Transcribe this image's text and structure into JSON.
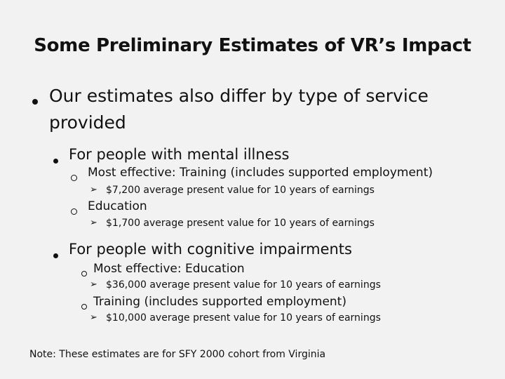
{
  "title": "Some Preliminary Estimates of VR’s Impact",
  "bullet1": {
    "line1": "Our estimates also differ by type of service",
    "line2": "provided"
  },
  "mental": {
    "heading": "For people with mental illness",
    "item1": "Most effective: Training (includes supported employment)",
    "item1_detail": "$7,200 average present value for 10 years of earnings",
    "item2": "Education",
    "item2_detail": "$1,700 average present value for 10 years of earnings"
  },
  "cognitive": {
    "heading": "For people with cognitive impairments",
    "item1": "Most effective: Education",
    "item1_detail": "$36,000 average present value for 10 years of earnings",
    "item2": "Training (includes supported employment)",
    "item2_detail": "$10,000 average present value for 10 years of earnings"
  },
  "note": "Note: These estimates are for SFY 2000 cohort from Virginia",
  "icons": {
    "level1": "filled-bullet-icon",
    "level2": "filled-bullet-icon",
    "level3": "hollow-circle-bullet-icon",
    "level4": "arrow-bullet-icon"
  }
}
